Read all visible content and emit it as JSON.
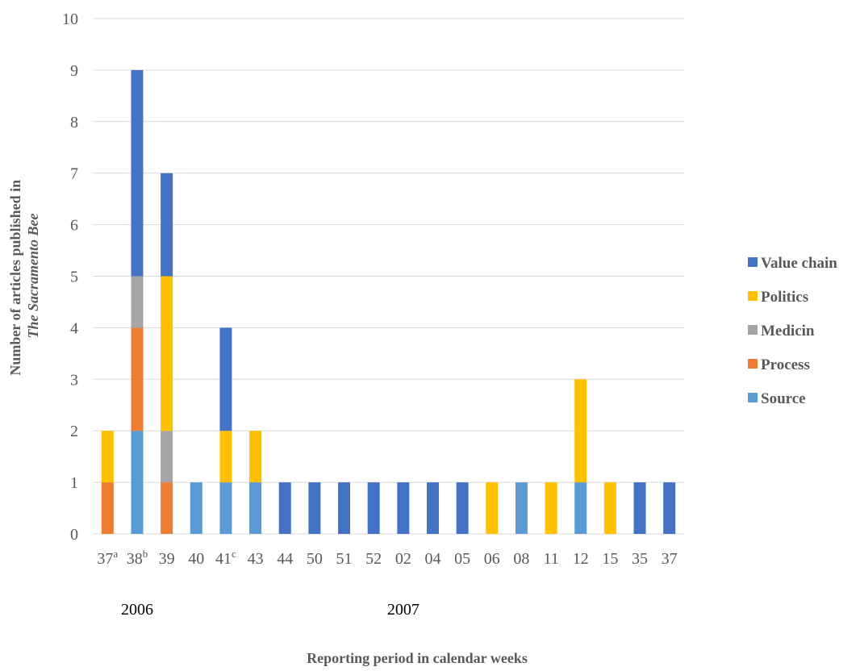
{
  "chart_data": {
    "type": "bar",
    "stacked": true,
    "categories": [
      "37",
      "38",
      "39",
      "40",
      "41",
      "43",
      "44",
      "50",
      "51",
      "52",
      "02",
      "04",
      "05",
      "06",
      "08",
      "11",
      "12",
      "15",
      "35",
      "37"
    ],
    "category_superscripts": [
      "a",
      "b",
      "",
      "",
      "c",
      "",
      "",
      "",
      "",
      "",
      "",
      "",
      "",
      "",
      "",
      "",
      "",
      "",
      "",
      ""
    ],
    "series": [
      {
        "name": "Source",
        "color": "#5B9BD5",
        "values": [
          0,
          2,
          0,
          1,
          1,
          1,
          0,
          0,
          0,
          0,
          0,
          0,
          0,
          0,
          1,
          0,
          1,
          0,
          0,
          0
        ]
      },
      {
        "name": "Process",
        "color": "#ED7D31",
        "values": [
          1,
          2,
          1,
          0,
          0,
          0,
          0,
          0,
          0,
          0,
          0,
          0,
          0,
          0,
          0,
          0,
          0,
          0,
          0,
          0
        ]
      },
      {
        "name": "Medicin",
        "color": "#A5A5A5",
        "values": [
          0,
          1,
          1,
          0,
          0,
          0,
          0,
          0,
          0,
          0,
          0,
          0,
          0,
          0,
          0,
          0,
          0,
          0,
          0,
          0
        ]
      },
      {
        "name": "Politics",
        "color": "#FFC000",
        "values": [
          1,
          0,
          3,
          0,
          1,
          1,
          0,
          0,
          0,
          0,
          0,
          0,
          0,
          1,
          0,
          1,
          2,
          1,
          0,
          0
        ]
      },
      {
        "name": "Value chain",
        "color": "#4472C4",
        "values": [
          0,
          4,
          2,
          0,
          2,
          0,
          1,
          1,
          1,
          1,
          1,
          1,
          1,
          0,
          0,
          0,
          0,
          0,
          1,
          1
        ]
      }
    ],
    "legend_order": [
      "Value chain",
      "Politics",
      "Medicin",
      "Process",
      "Source"
    ],
    "legend_position": "right",
    "yticks": [
      "0",
      "1",
      "2",
      "3",
      "4",
      "5",
      "6",
      "7",
      "8",
      "9",
      "10"
    ],
    "ylim": [
      0,
      10
    ],
    "grid": true,
    "ylabel_line1": "Number of articles published in",
    "ylabel_line2": "The Sacramento Bee",
    "xlabel": "Reporting period in calendar weeks",
    "year_labels": [
      {
        "text": "2006",
        "category_index": 1
      },
      {
        "text": "2007",
        "category_index": 10
      }
    ]
  }
}
